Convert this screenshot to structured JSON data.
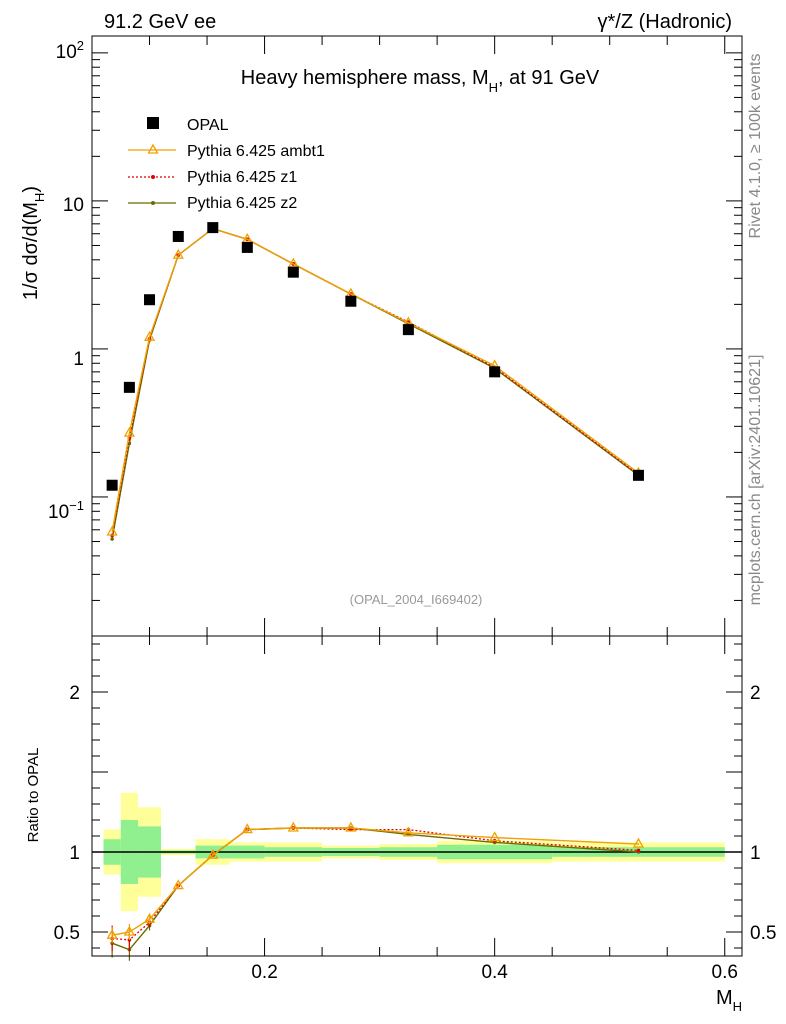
{
  "colors": {
    "data": "#000000",
    "ambt1": "#f0a000",
    "z1": "#e00000",
    "z2": "#6b6b00",
    "band_inner": "#90f090",
    "band_outer": "#ffff99",
    "side_text": "#888888"
  },
  "header": {
    "left": "91.2 GeV ee",
    "right": "γ*/Z (Hadronic)"
  },
  "side_labels": {
    "rivet": "Rivet 4.1.0, ≥ 100k events",
    "mcplots": "mcplots.cern.ch [arXiv:2401.10621]"
  },
  "chart_data": [
    {
      "type": "scatter",
      "title": "Heavy hemisphere mass, M",
      "title_sub": "H",
      "title_suffix": ", at 91 GeV",
      "ylabel": "1/σ  dσ/d(M",
      "ylabel_sub": "H",
      "ylabel_suffix": ")",
      "yscale": "log",
      "xlim": [
        0.05,
        0.615
      ],
      "ylim": [
        0.0115,
        130
      ],
      "y_tick_labels": [
        "10",
        "1"
      ],
      "source": "(OPAL_2004_I669402)",
      "legend_position": "top-left",
      "series": [
        {
          "name": "OPAL",
          "key": "data",
          "marker": "square",
          "x": [
            0.0675,
            0.0825,
            0.1,
            0.125,
            0.155,
            0.185,
            0.225,
            0.275,
            0.325,
            0.4,
            0.525
          ],
          "y": [
            0.12,
            0.55,
            2.15,
            5.75,
            6.6,
            4.85,
            3.3,
            2.1,
            1.35,
            0.7,
            0.14
          ]
        },
        {
          "name": "Pythia 6.425 ambt1",
          "key": "ambt1",
          "marker": "triangle",
          "x": [
            0.0675,
            0.0825,
            0.1,
            0.125,
            0.155,
            0.185,
            0.225,
            0.275,
            0.325,
            0.4,
            0.525
          ],
          "y": [
            0.058,
            0.27,
            1.2,
            4.3,
            6.5,
            5.5,
            3.75,
            2.35,
            1.5,
            0.77,
            0.145
          ]
        },
        {
          "name": "Pythia 6.425 z1",
          "key": "z1",
          "marker": "dot",
          "x": [
            0.0675,
            0.0825,
            0.1,
            0.125,
            0.155,
            0.185,
            0.225,
            0.275,
            0.325,
            0.4,
            0.525
          ],
          "y": [
            0.055,
            0.25,
            1.17,
            4.3,
            6.5,
            5.5,
            3.75,
            2.35,
            1.52,
            0.75,
            0.142
          ]
        },
        {
          "name": "Pythia 6.425 z2",
          "key": "z2",
          "marker": "dot",
          "x": [
            0.0675,
            0.0825,
            0.1,
            0.125,
            0.155,
            0.185,
            0.225,
            0.275,
            0.325,
            0.4,
            0.525
          ],
          "y": [
            0.052,
            0.23,
            1.15,
            4.3,
            6.5,
            5.5,
            3.75,
            2.35,
            1.48,
            0.74,
            0.14
          ]
        }
      ]
    },
    {
      "type": "line",
      "ylabel": "Ratio to OPAL",
      "xlabel": "M",
      "xlabel_sub": "H",
      "xlim": [
        0.05,
        0.615
      ],
      "ylim": [
        0.35,
        2.35
      ],
      "x_tick_labels": [
        "0.2",
        "0.4",
        "0.6"
      ],
      "x_ticks": [
        0.2,
        0.4,
        0.6
      ],
      "y_tick_labels": [
        "0.5",
        "1",
        "2"
      ],
      "y_ticks": [
        0.5,
        1,
        2
      ],
      "reference": 1,
      "bands": {
        "edges": [
          0.06,
          0.075,
          0.09,
          0.11,
          0.14,
          0.17,
          0.2,
          0.25,
          0.3,
          0.35,
          0.45,
          0.6
        ],
        "inner": [
          0.08,
          0.2,
          0.16,
          0.01,
          0.04,
          0.04,
          0.03,
          0.025,
          0.03,
          0.045,
          0.03
        ],
        "outer": [
          0.14,
          0.37,
          0.28,
          0.02,
          0.08,
          0.06,
          0.06,
          0.04,
          0.05,
          0.07,
          0.06
        ]
      },
      "series": [
        {
          "name": "Pythia 6.425 ambt1",
          "key": "ambt1",
          "x": [
            0.0675,
            0.0825,
            0.1,
            0.125,
            0.155,
            0.185,
            0.225,
            0.275,
            0.325,
            0.4,
            0.525
          ],
          "y": [
            0.48,
            0.5,
            0.58,
            0.79,
            0.98,
            1.14,
            1.15,
            1.15,
            1.12,
            1.09,
            1.05
          ],
          "err": [
            0.05,
            0.05,
            0.03,
            0.01,
            0.01,
            0.01,
            0.005,
            0.005,
            0.005,
            0.005,
            0.005
          ]
        },
        {
          "name": "Pythia 6.425 z1",
          "key": "z1",
          "x": [
            0.0675,
            0.0825,
            0.1,
            0.125,
            0.155,
            0.185,
            0.225,
            0.275,
            0.325,
            0.4,
            0.525
          ],
          "y": [
            0.46,
            0.45,
            0.56,
            0.79,
            0.98,
            1.14,
            1.15,
            1.14,
            1.14,
            1.07,
            1.01
          ],
          "err": [
            0.08,
            0.07,
            0.03,
            0.01,
            0.01,
            0.01,
            0.005,
            0.005,
            0.005,
            0.005,
            0.005
          ]
        },
        {
          "name": "Pythia 6.425 z2",
          "key": "z2",
          "x": [
            0.0675,
            0.0825,
            0.1,
            0.125,
            0.155,
            0.185,
            0.225,
            0.275,
            0.325,
            0.4,
            0.525
          ],
          "y": [
            0.43,
            0.39,
            0.54,
            0.79,
            0.98,
            1.14,
            1.15,
            1.15,
            1.11,
            1.06,
            1.0
          ],
          "err": [
            0.09,
            0.07,
            0.03,
            0.01,
            0.01,
            0.01,
            0.005,
            0.005,
            0.005,
            0.005,
            0.005
          ]
        }
      ]
    }
  ]
}
